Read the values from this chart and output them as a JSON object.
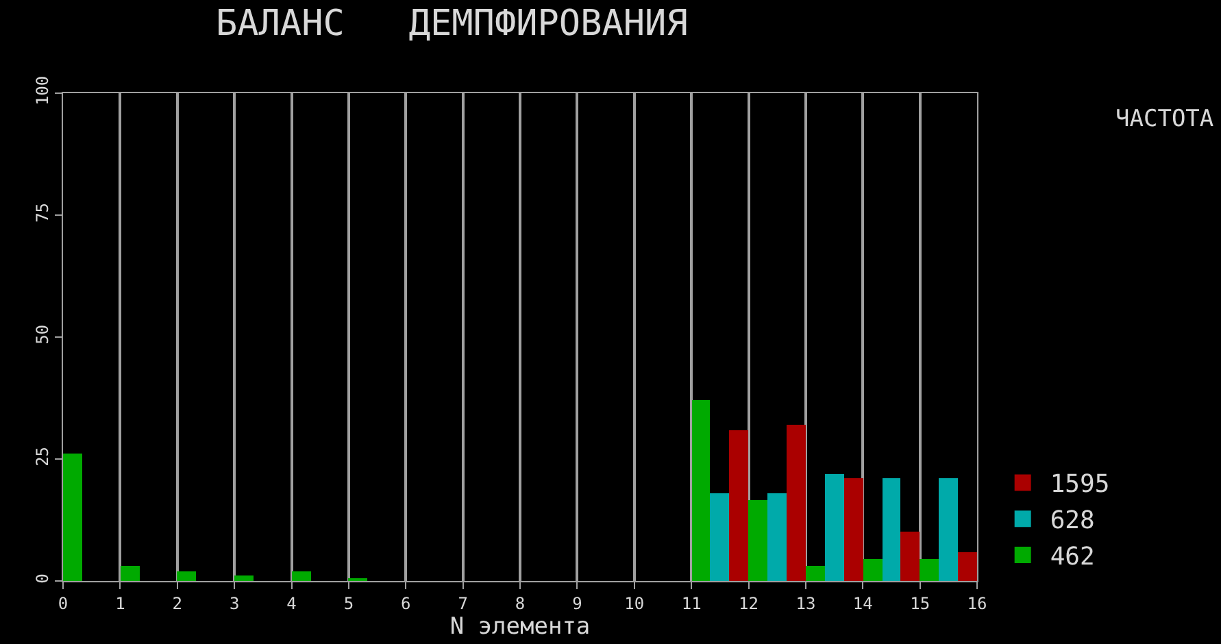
{
  "chart_data": {
    "type": "bar",
    "title": "БАЛАНС   ДЕМПФИРОВАНИЯ",
    "xlabel": "N элемента",
    "legend_title": "ЧАСТОТА",
    "x": [
      0.5,
      1.5,
      2.5,
      3.5,
      4.5,
      5.5,
      6.5,
      7.5,
      8.5,
      9.5,
      10.5,
      11.5,
      12.5,
      13.5,
      14.5,
      15.5
    ],
    "series": [
      {
        "name": "462",
        "color": "#00aa00",
        "values": [
          26,
          3,
          2,
          1,
          2,
          0.5,
          0,
          0,
          0,
          0,
          0,
          37,
          16.5,
          3,
          4.5,
          4.5
        ]
      },
      {
        "name": "628",
        "color": "#00aaaa",
        "values": [
          0,
          0,
          0,
          0,
          0,
          0,
          0,
          0,
          0,
          0,
          0,
          18,
          18,
          22,
          21,
          21
        ]
      },
      {
        "name": "1595",
        "color": "#aa0000",
        "values": [
          0,
          0,
          0,
          0,
          0,
          0,
          0,
          0,
          0,
          0,
          0,
          31,
          32,
          21,
          10,
          6
        ]
      }
    ],
    "xlim": [
      0,
      16
    ],
    "xticks": [
      0,
      1,
      2,
      3,
      4,
      5,
      6,
      7,
      8,
      9,
      10,
      11,
      12,
      13,
      14,
      15,
      16
    ],
    "ylim": [
      0,
      100
    ],
    "yticks": [
      0,
      25,
      50,
      75,
      100
    ],
    "grid": "x",
    "legend": "bottom right"
  }
}
